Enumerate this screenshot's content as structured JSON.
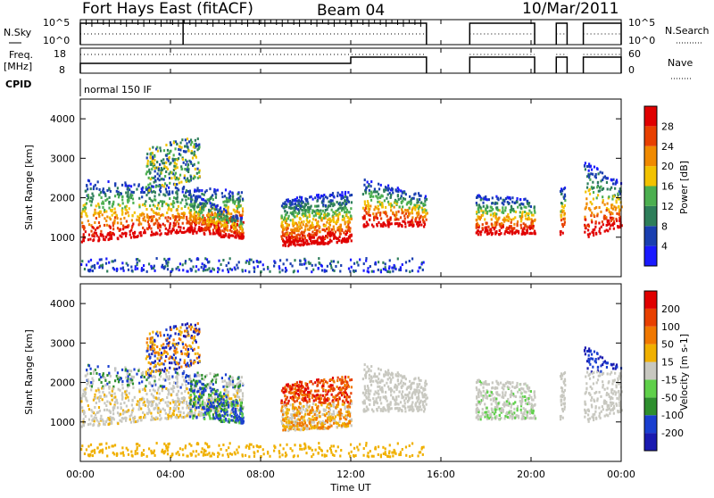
{
  "header": {
    "station": "Fort Hays East (fitACF)",
    "beam": "Beam 04",
    "date": "10/Mar/2011"
  },
  "side_labels": {
    "nsky": "N.Sky",
    "nsearch": "N.Search",
    "freq": "Freq.",
    "mhz": "[MHz]",
    "nave": "Nave",
    "cpid": "CPID",
    "cpid_value": "normal 150 IF"
  },
  "small_panels": {
    "noise_ticks_left": [
      "10^5",
      "10^0"
    ],
    "noise_ticks_right": [
      "10^5",
      "10^0"
    ],
    "freq_ticks": [
      "18",
      "8"
    ],
    "nave_ticks": [
      "60",
      "0"
    ]
  },
  "chart_data": [
    {
      "type": "heatmap",
      "name": "power",
      "ylabel": "Slant Range [km]",
      "colorbar_label": "Power [dB]",
      "ylim": [
        0,
        4500
      ],
      "yticks": [
        1000,
        2000,
        3000,
        4000
      ],
      "colorbar_ticks": [
        4,
        8,
        12,
        16,
        20,
        24,
        28
      ],
      "colors": [
        "#1a1aff",
        "#1a3fb0",
        "#2e7e5a",
        "#4caf50",
        "#f2c200",
        "#f08a00",
        "#e84000",
        "#e00000"
      ]
    },
    {
      "type": "heatmap",
      "name": "velocity",
      "ylabel": "Slant Range [km]",
      "colorbar_label": "Velocity [m s-1]",
      "ylim": [
        0,
        4500
      ],
      "yticks": [
        1000,
        2000,
        3000,
        4000
      ],
      "colorbar_ticks": [
        200,
        100,
        50,
        15,
        -15,
        -50,
        -100,
        -200
      ],
      "colors": [
        "#1a1ab0",
        "#1a3fd0",
        "#2e8f2e",
        "#5fd04a",
        "#c8c8c0",
        "#f0b000",
        "#f07800",
        "#e84000",
        "#e00000"
      ]
    }
  ],
  "xaxis": {
    "label": "Time UT",
    "ticks": [
      "00:00",
      "04:00",
      "08:00",
      "12:00",
      "16:00",
      "20:00",
      "00:00"
    ]
  }
}
